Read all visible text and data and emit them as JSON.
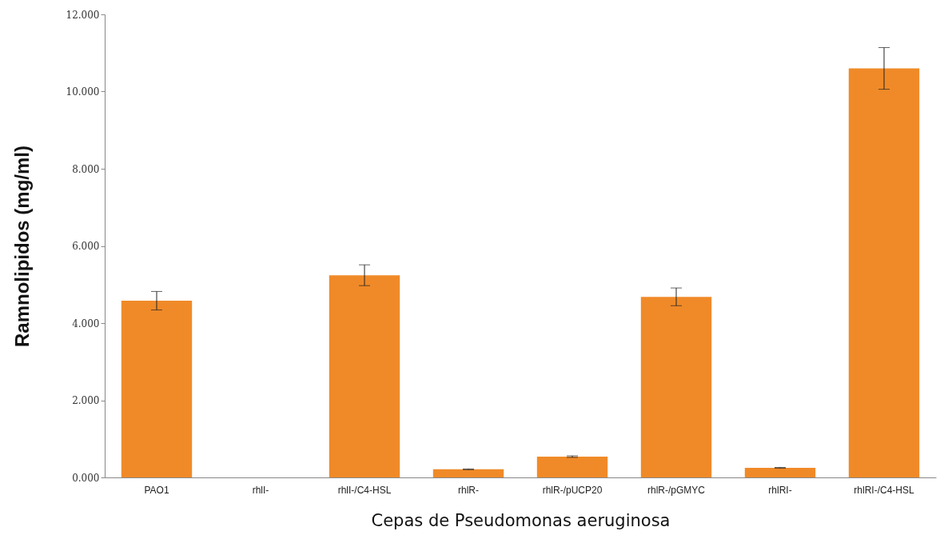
{
  "chart_data": {
    "type": "bar",
    "xlabel": "Cepas de Pseudomonas aeruginosa",
    "ylabel": "Ramnolipidos (mg/ml)",
    "categories": [
      "PAO1",
      "rhlI-",
      "rhlI-/C4-HSL",
      "rhlR-",
      "rhlR-/pUCP20",
      "rhlR-/pGMYC",
      "rhlRI-",
      "rhlRI-/C4-HSL"
    ],
    "values": [
      4.58,
      0,
      5.24,
      0.21,
      0.54,
      4.68,
      0.25,
      10.6
    ],
    "errors": [
      0.24,
      null,
      0.27,
      0.01,
      0.02,
      0.23,
      0.01,
      0.54
    ],
    "color": "#f08a28",
    "ylim": [
      0,
      12
    ],
    "yticks": [
      {
        "value": 0,
        "label": "0.000"
      },
      {
        "value": 2,
        "label": "2.000"
      },
      {
        "value": 4,
        "label": "4.000"
      },
      {
        "value": 6,
        "label": "6.000"
      },
      {
        "value": 8,
        "label": "8.000"
      },
      {
        "value": 10,
        "label": "10.000"
      },
      {
        "value": 12,
        "label": "12.000"
      }
    ],
    "grid": false
  }
}
